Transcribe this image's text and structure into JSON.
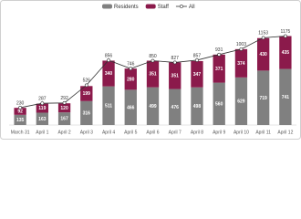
{
  "chart_data": {
    "type": "bar",
    "stacked": true,
    "categories": [
      "March 31",
      "April 1",
      "April 2",
      "April 3",
      "April 4",
      "April 5",
      "April 6",
      "April 7",
      "April 8",
      "April 9",
      "April 10",
      "April 11",
      "April 12"
    ],
    "series": [
      {
        "name": "Residents",
        "color": "#808080",
        "values": [
          135,
          163,
          167,
          316,
          511,
          466,
          499,
          476,
          498,
          560,
          629,
          719,
          741
        ]
      },
      {
        "name": "Staff",
        "color": "#8b1a4b",
        "values": [
          92,
          119,
          120,
          199,
          340,
          280,
          351,
          351,
          347,
          371,
          374,
          430,
          435
        ]
      },
      {
        "name": "All",
        "type": "line",
        "color": "#333333",
        "values": [
          230,
          287,
          292,
          526,
          856,
          746,
          850,
          827,
          857,
          931,
          1003,
          1153,
          1175
        ]
      }
    ]
  }
}
